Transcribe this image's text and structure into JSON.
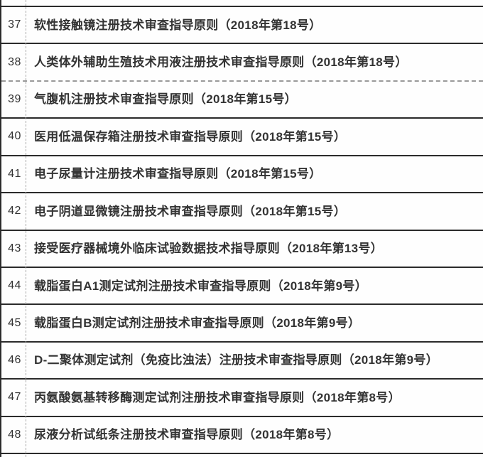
{
  "page": {
    "background": "#fefefe"
  },
  "colors": {
    "grid_line": "#2b2b2b",
    "dashed_row_divider": "#9a9a9a",
    "column_dashed_separator": "#a8a8a8",
    "text": "#333333"
  },
  "table": {
    "rows": [
      {
        "no": "37",
        "title": "软性接触镜注册技术审查指导原则（2018年第18号）",
        "divider_after": "solid"
      },
      {
        "no": "38",
        "title": "人类体外辅助生殖技术用液注册技术审查指导原则（2018年第18号）",
        "divider_after": "dashed"
      },
      {
        "no": "39",
        "title": "气腹机注册技术审查指导原则（2018年第15号）",
        "divider_after": "solid"
      },
      {
        "no": "40",
        "title": "医用低温保存箱注册技术审查指导原则（2018年第15号）",
        "divider_after": "solid"
      },
      {
        "no": "41",
        "title": "电子尿量计注册技术审查指导原则（2018年第15号）",
        "divider_after": "solid"
      },
      {
        "no": "42",
        "title": "电子阴道显微镜注册技术审查指导原则（2018年第15号）",
        "divider_after": "solid"
      },
      {
        "no": "43",
        "title": "接受医疗器械境外临床试验数据技术指导原则（2018年第13号）",
        "divider_after": "solid"
      },
      {
        "no": "44",
        "title": "载脂蛋白A1测定试剂注册技术审查指导原则（2018年第9号）",
        "divider_after": "solid"
      },
      {
        "no": "45",
        "title": "载脂蛋白B测定试剂注册技术审查指导原则（2018年第9号）",
        "divider_after": "solid"
      },
      {
        "no": "46",
        "title": "D-二聚体测定试剂（免疫比浊法）注册技术审查指导原则（2018年第9号）",
        "divider_after": "solid"
      },
      {
        "no": "47",
        "title": "丙氨酸氨基转移酶测定试剂注册技术审查指导原则（2018年第8号）",
        "divider_after": "solid"
      },
      {
        "no": "48",
        "title": "尿液分析试纸条注册技术审查指导原则（2018年第8号）",
        "divider_after": "solid"
      }
    ]
  }
}
